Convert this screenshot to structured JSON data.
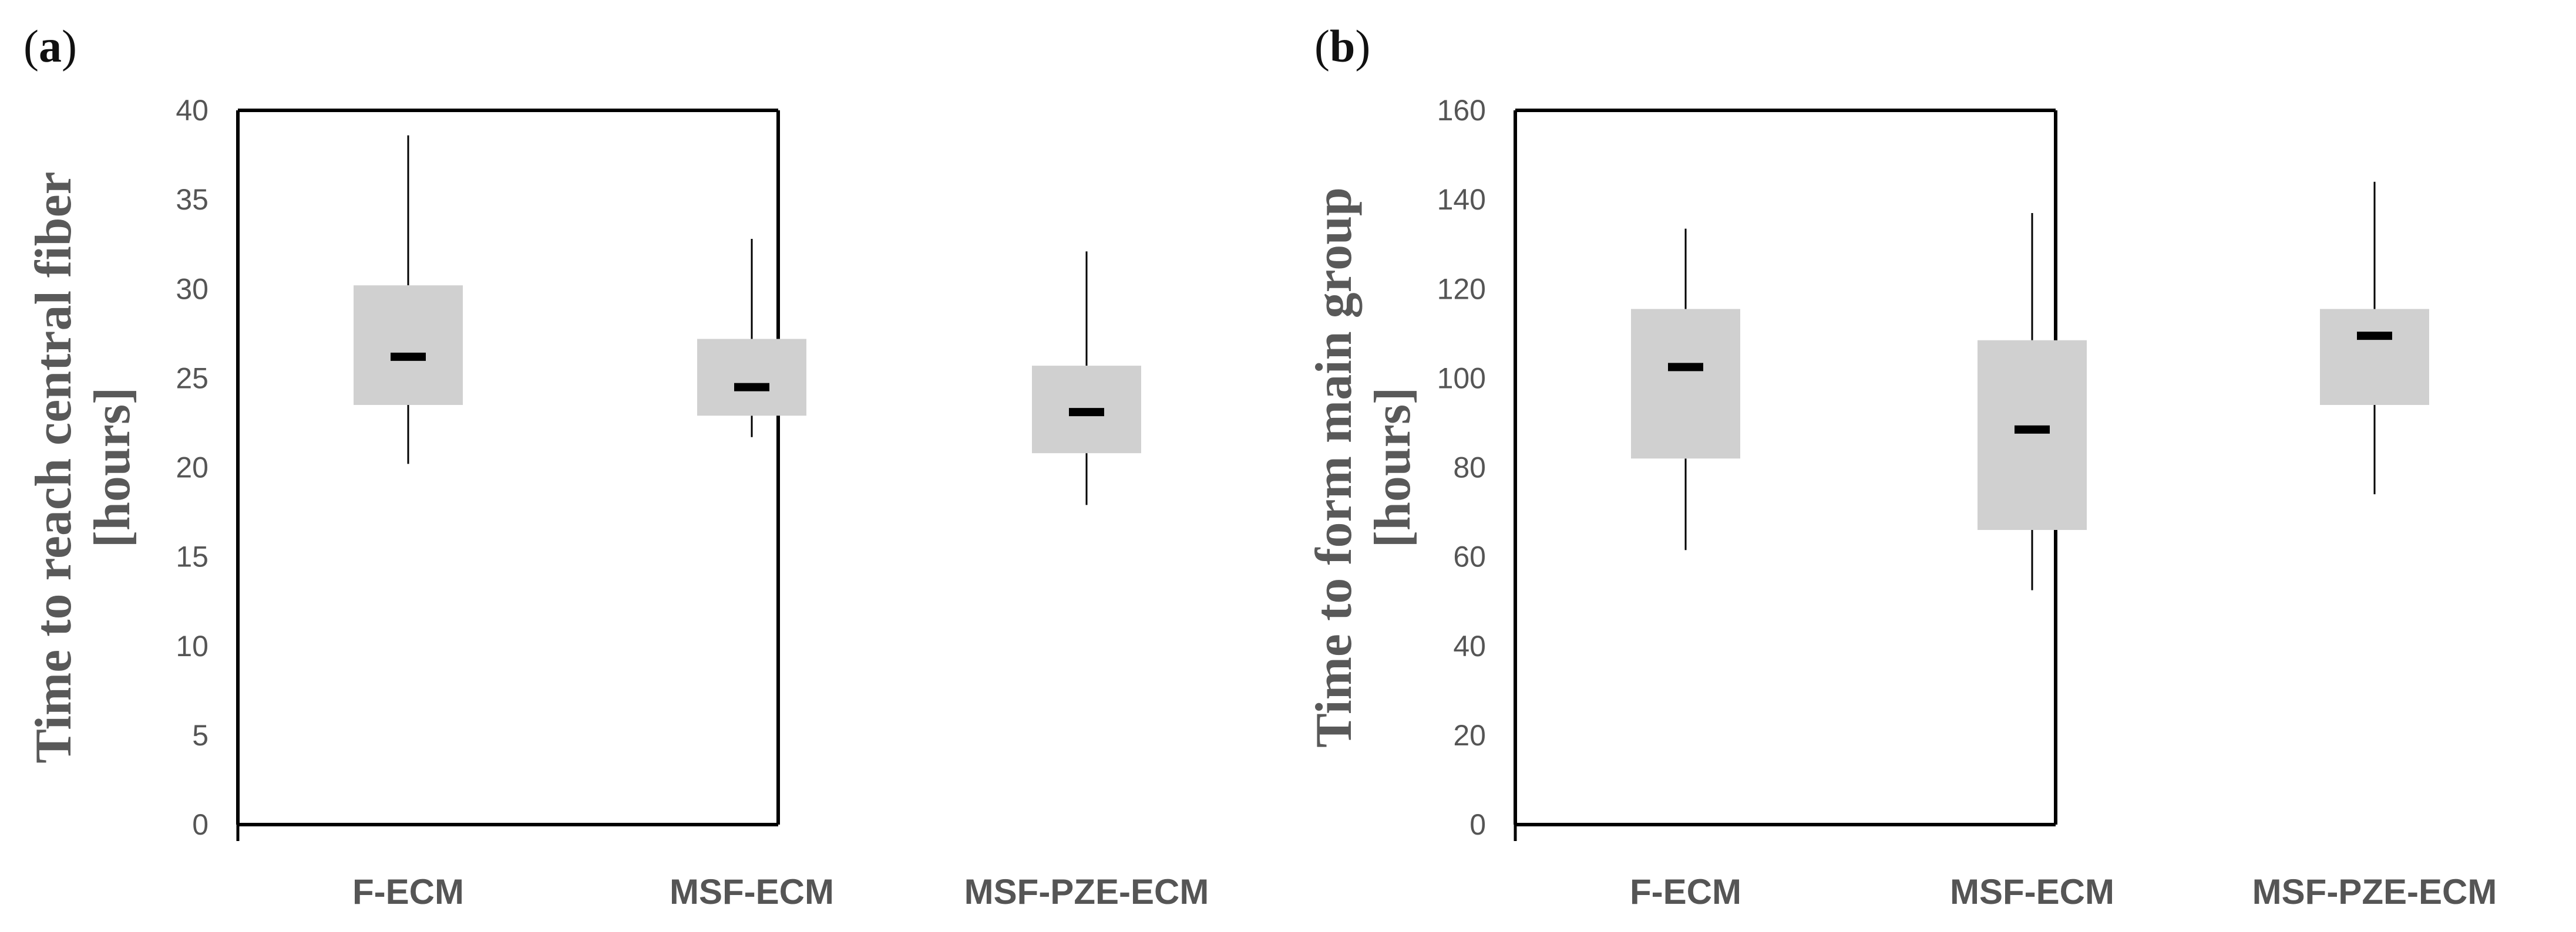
{
  "chart_data": [
    {
      "type": "box",
      "panel": "a",
      "title": "",
      "ylabel": [
        "Time to reach central fiber",
        "[hours]"
      ],
      "xlabel": "",
      "ylim": [
        0,
        40
      ],
      "yticks": [
        0,
        5,
        10,
        15,
        20,
        25,
        30,
        35,
        40
      ],
      "categories": [
        "F-ECM",
        "MSF-ECM",
        "MSF-PZE-ECM"
      ],
      "boxes": [
        {
          "category": "F-ECM",
          "min": 20.2,
          "q1": 23.5,
          "median": 26.2,
          "q3": 30.2,
          "max": 38.6
        },
        {
          "category": "MSF-ECM",
          "min": 21.7,
          "q1": 22.9,
          "median": 24.5,
          "q3": 27.2,
          "max": 32.8
        },
        {
          "category": "MSF-PZE-ECM",
          "min": 17.9,
          "q1": 20.8,
          "median": 23.1,
          "q3": 25.7,
          "max": 32.1
        }
      ]
    },
    {
      "type": "box",
      "panel": "b",
      "title": "",
      "ylabel": [
        "Time to form main group",
        "[hours]"
      ],
      "xlabel": "",
      "ylim": [
        0,
        160
      ],
      "yticks": [
        0,
        20,
        40,
        60,
        80,
        100,
        120,
        140,
        160
      ],
      "categories": [
        "F-ECM",
        "MSF-ECM",
        "MSF-PZE-ECM"
      ],
      "boxes": [
        {
          "category": "F-ECM",
          "min": 61.5,
          "q1": 82.0,
          "median": 102.5,
          "q3": 115.5,
          "max": 133.5
        },
        {
          "category": "MSF-ECM",
          "min": 52.5,
          "q1": 66.0,
          "median": 88.5,
          "q3": 108.5,
          "max": 137.0
        },
        {
          "category": "MSF-PZE-ECM",
          "min": 74.0,
          "q1": 94.0,
          "median": 109.5,
          "q3": 115.5,
          "max": 144.0
        }
      ]
    }
  ]
}
